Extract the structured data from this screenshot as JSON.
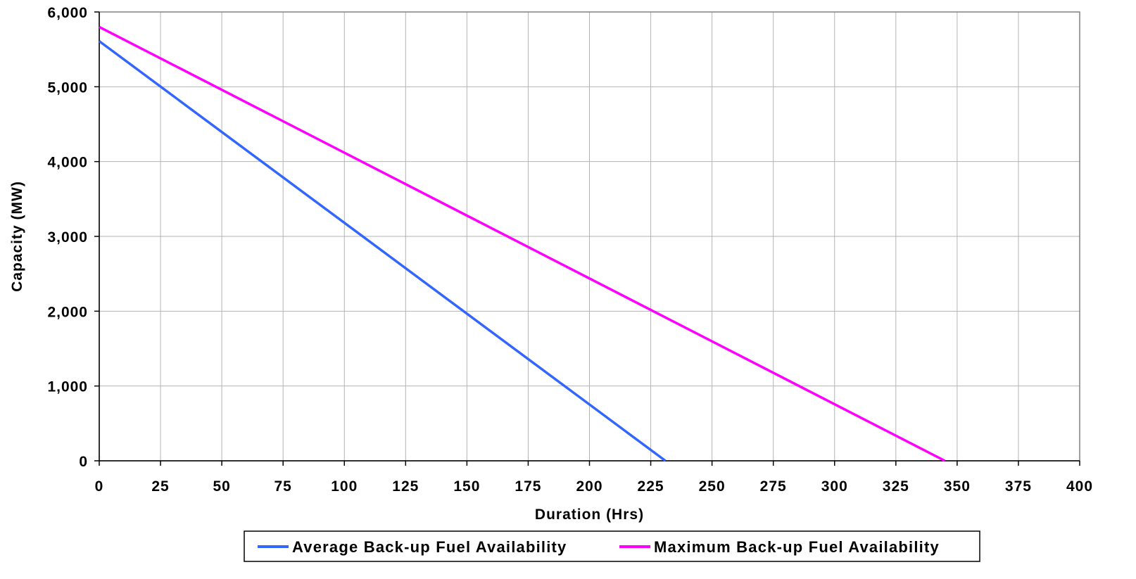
{
  "chart_data": {
    "type": "line",
    "xlabel": "Duration (Hrs)",
    "ylabel": "Capacity (MW)",
    "xlim": [
      0,
      400
    ],
    "ylim": [
      0,
      6000
    ],
    "x_ticks": [
      "0",
      "25",
      "50",
      "75",
      "100",
      "125",
      "150",
      "175",
      "200",
      "225",
      "250",
      "275",
      "300",
      "325",
      "350",
      "375",
      "400"
    ],
    "y_ticks": [
      "0",
      "1,000",
      "2,000",
      "3,000",
      "4,000",
      "5,000",
      "6,000"
    ],
    "grid": true,
    "legend_position": "bottom",
    "series": [
      {
        "name": "Average Back-up Fuel Availability",
        "color": "#3366ff",
        "points": [
          [
            0,
            5610
          ],
          [
            231,
            0
          ]
        ]
      },
      {
        "name": "Maximum Back-up Fuel Availability",
        "color": "#ff00ff",
        "points": [
          [
            0,
            5800
          ],
          [
            345,
            0
          ]
        ]
      }
    ]
  }
}
